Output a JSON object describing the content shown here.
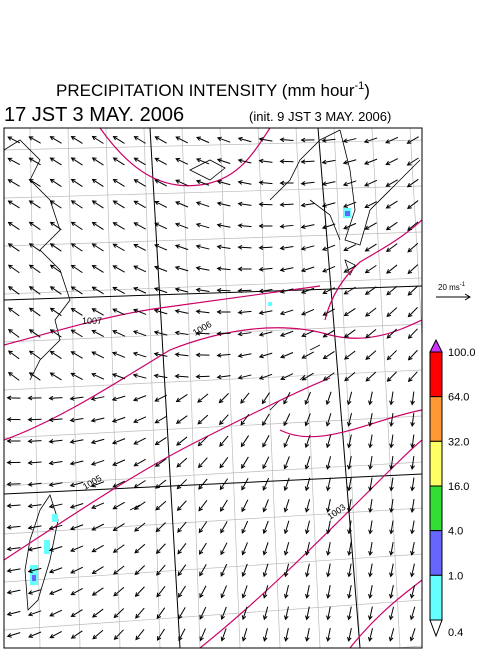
{
  "header": {
    "title": "PRECIPITATION INTENSITY (mm hour",
    "title_sup": "-1",
    "title_end": ")",
    "valid_time": "17 JST 3 MAY. 2006",
    "init_time": "(init. 9 JST 3 MAY. 2006)"
  },
  "scale": {
    "label": "20 ms",
    "sup": "-1"
  },
  "map": {
    "contour_labels": [
      "1007",
      "1006",
      "1005",
      "1003"
    ]
  },
  "colorbar": {
    "over_color": "#cc33ff",
    "under_color": "#ffffff",
    "segments": [
      {
        "color": "#ff0000"
      },
      {
        "color": "#ff9933"
      },
      {
        "color": "#ffff66"
      },
      {
        "color": "#33dd33"
      },
      {
        "color": "#6666ff"
      },
      {
        "color": "#66ffff"
      }
    ],
    "labels": [
      "100.0",
      "64.0",
      "32.0",
      "16.0",
      "4.0",
      "1.0",
      "0.4"
    ]
  }
}
